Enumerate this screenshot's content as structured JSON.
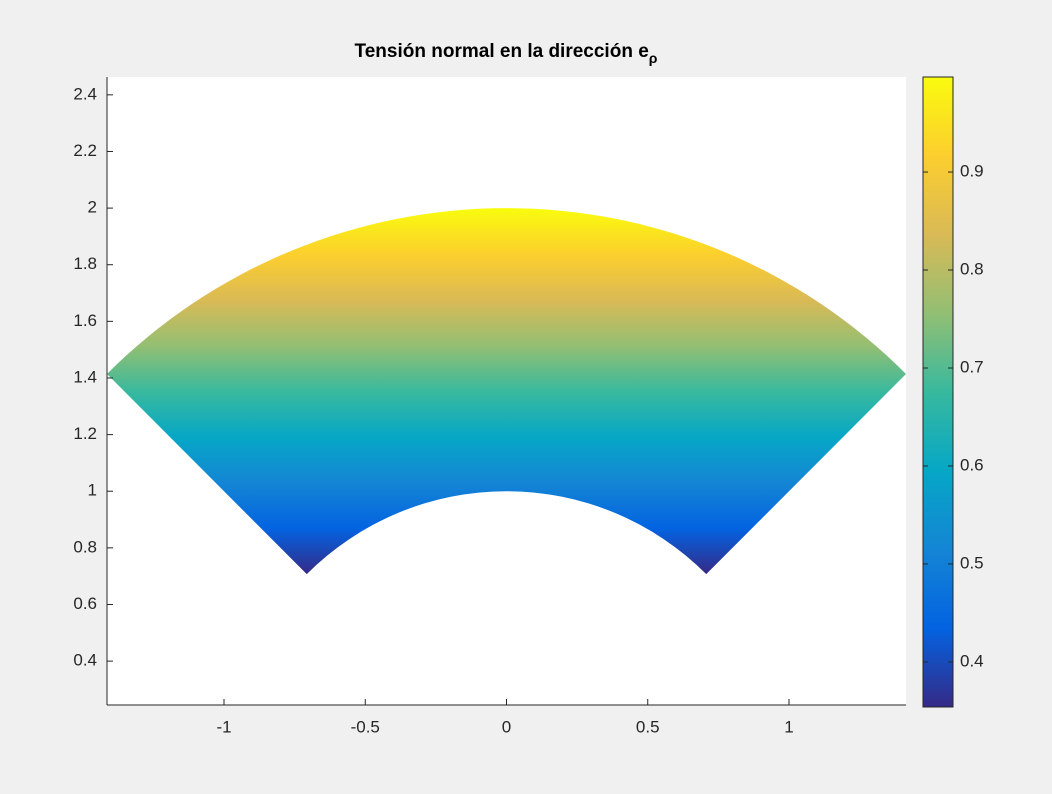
{
  "chart_data": {
    "type": "surface",
    "title": "Tensión normal en la dirección e",
    "title_subscript": "ρ",
    "xlim": [
      -1.4142,
      1.4142
    ],
    "ylim": [
      0.245,
      2.463
    ],
    "xticks": [
      -1,
      -0.5,
      0,
      0.5,
      1
    ],
    "yticks": [
      0.4,
      0.6,
      0.8,
      1,
      1.2,
      1.4,
      1.6,
      1.8,
      2,
      2.2,
      2.4
    ],
    "surface": {
      "r": [
        1,
        2
      ],
      "theta_deg": [
        45,
        135
      ],
      "y": [
        0.7071,
        2
      ],
      "c": [
        0.354,
        1
      ]
    },
    "colorbar": {
      "lim": [
        0.354,
        0.997
      ],
      "ticks": [
        0.4,
        0.5,
        0.6,
        0.7,
        0.8,
        0.9
      ]
    },
    "colormap": [
      "#352a87",
      "#0363e1",
      "#1485d4",
      "#06a7c6",
      "#38b99e",
      "#92bf73",
      "#d9ba56",
      "#fcce2e",
      "#f9fb0e"
    ]
  }
}
